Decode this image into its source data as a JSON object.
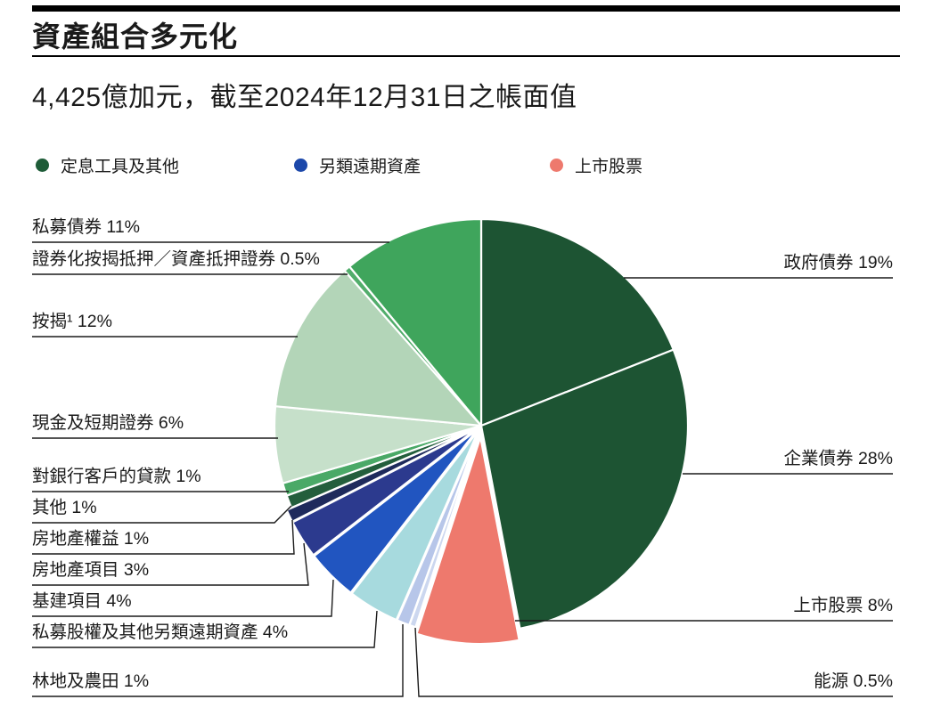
{
  "header": {
    "title": "資產組合多元化",
    "subtitle": "4,425億加元，截至2024年12月31日之帳面值"
  },
  "legend": {
    "items": [
      {
        "label": "定息工具及其他",
        "color": "#1e5c38"
      },
      {
        "label": "另類遠期資產",
        "color": "#1c48aa"
      },
      {
        "label": "上市股票",
        "color": "#ee796d"
      }
    ]
  },
  "chart_data": {
    "type": "pie",
    "title": "資產組合多元化",
    "subtitle": "4,425億加元，截至2024年12月31日之帳面值",
    "unit": "%",
    "start_angle_deg": 0,
    "direction": "clockwise",
    "legend_position": "top",
    "slices": [
      {
        "id": "government-bonds",
        "label": "政府債券",
        "value": 19,
        "pct": "19%",
        "display": "政府債券 19%",
        "group": "定息工具及其他",
        "color": "#1d5433",
        "explode": 0
      },
      {
        "id": "corporate-bonds",
        "label": "企業債券",
        "value": 28,
        "pct": "28%",
        "display": "企業債券 28%",
        "group": "定息工具及其他",
        "color": "#1d5433",
        "explode": 0
      },
      {
        "id": "public-equities",
        "label": "上市股票",
        "value": 8,
        "pct": "8%",
        "display": "上市股票 8%",
        "group": "上市股票",
        "color": "#ee796d",
        "explode": 13
      },
      {
        "id": "energy",
        "label": "能源",
        "value": 0.5,
        "pct": "0.5%",
        "display": "能源 0.5%",
        "group": "另類遠期資產",
        "color": "#ccd7ef",
        "explode": 6
      },
      {
        "id": "timberland-and-farmland",
        "label": "林地及農田",
        "value": 1,
        "pct": "1%",
        "display": "林地及農田 1%",
        "group": "另類遠期資產",
        "color": "#b7c6e9",
        "explode": 6
      },
      {
        "id": "private-equity-and-other-alda",
        "label": "私募股權及其他另類遠期資產",
        "value": 4,
        "pct": "4%",
        "display": "私募股權及其他另類遠期資產 4%",
        "group": "另類遠期資產",
        "color": "#a7dade",
        "explode": 6
      },
      {
        "id": "infrastructure",
        "label": "基建項目",
        "value": 4,
        "pct": "4%",
        "display": "基建項目 4%",
        "group": "另類遠期資產",
        "color": "#2155c0",
        "explode": 6
      },
      {
        "id": "real-estate-projects",
        "label": "房地產項目",
        "value": 3,
        "pct": "3%",
        "display": "房地產項目 3%",
        "group": "另類遠期資產",
        "color": "#2c3a8e",
        "explode": 6
      },
      {
        "id": "real-estate-equities",
        "label": "房地產權益",
        "value": 1,
        "pct": "1%",
        "display": "房地產權益 1%",
        "group": "另類遠期資產",
        "color": "#1e2a5c",
        "explode": 6
      },
      {
        "id": "other",
        "label": "其他",
        "value": 1,
        "pct": "1%",
        "display": "其他 1%",
        "group": "定息工具及其他",
        "color": "#235e3c",
        "explode": 0
      },
      {
        "id": "loans-to-bank-clients",
        "label": "對銀行客戶的貸款",
        "value": 1,
        "pct": "1%",
        "display": "對銀行客戶的貸款 1%",
        "group": "定息工具及其他",
        "color": "#4aa967",
        "explode": 0
      },
      {
        "id": "cash-and-short-term-securities",
        "label": "現金及短期證券",
        "value": 6,
        "pct": "6%",
        "display": "現金及短期證券 6%",
        "group": "定息工具及其他",
        "color": "#c6e0ca",
        "explode": 0
      },
      {
        "id": "mortgages",
        "label": "按揭¹",
        "value": 12,
        "pct": "12%",
        "display": "按揭¹ 12%",
        "group": "定息工具及其他",
        "color": "#b3d5b8",
        "explode": 0
      },
      {
        "id": "securitized-mbs-abs",
        "label": "證券化按揭抵押／資產抵押證券",
        "value": 0.5,
        "pct": "0.5%",
        "display": "證券化按揭抵押／資產抵押證券 0.5%",
        "group": "定息工具及其他",
        "color": "#52ad6b",
        "explode": 0
      },
      {
        "id": "private-placement-debt",
        "label": "私募債券",
        "value": 11,
        "pct": "11%",
        "display": "私募債券 11%",
        "group": "定息工具及其他",
        "color": "#3fa55c",
        "explode": 0
      }
    ]
  }
}
